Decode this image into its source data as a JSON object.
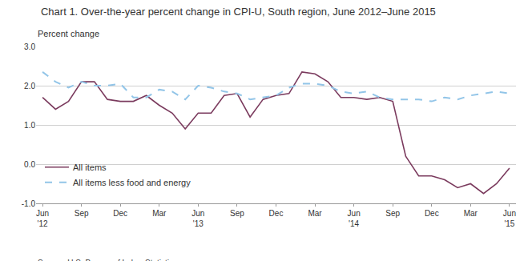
{
  "chart_data": {
    "type": "line",
    "title": "Chart 1. Over-the-year percent change in CPI-U, South region, June 2012–June 2015",
    "y_label": "Percent change",
    "annotations": [
      "Source: U.S. Bureau of Labor Statistics."
    ],
    "categories": [
      "Jun\n'12",
      null,
      null,
      "Sep",
      null,
      null,
      "Dec",
      null,
      null,
      "Mar",
      null,
      null,
      "Jun\n'13",
      null,
      null,
      "Sep",
      null,
      null,
      "Dec",
      null,
      null,
      "Mar",
      null,
      null,
      "Jun\n'14",
      null,
      null,
      "Sep",
      null,
      null,
      "Dec",
      null,
      null,
      "Mar",
      null,
      null,
      "Jun\n'15"
    ],
    "series": [
      {
        "name": "All items",
        "color": "#7B3B5E",
        "line_style": "solid",
        "values": [
          1.7,
          1.4,
          1.6,
          2.1,
          2.1,
          1.65,
          1.6,
          1.6,
          1.75,
          1.5,
          1.3,
          0.9,
          1.3,
          1.3,
          1.75,
          1.8,
          1.2,
          1.65,
          1.75,
          1.8,
          2.35,
          2.3,
          2.1,
          1.7,
          1.7,
          1.65,
          1.7,
          1.6,
          0.2,
          -0.3,
          -0.3,
          -0.4,
          -0.6,
          -0.5,
          -0.75,
          -0.5,
          -0.1
        ]
      },
      {
        "name": "All items less food and energy",
        "color": "#92C5E8",
        "line_style": "dashed",
        "values": [
          2.35,
          2.1,
          1.95,
          2.1,
          2.0,
          2.0,
          2.05,
          1.7,
          1.7,
          1.9,
          1.85,
          1.65,
          2.0,
          1.95,
          1.85,
          1.8,
          1.65,
          1.7,
          1.75,
          1.95,
          2.05,
          2.05,
          2.0,
          1.85,
          1.8,
          1.85,
          1.7,
          1.65,
          1.65,
          1.65,
          1.6,
          1.7,
          1.65,
          1.75,
          1.8,
          1.85,
          1.8
        ]
      }
    ],
    "ylim": [
      -1.0,
      3.0
    ],
    "yticks": [
      {
        "value": -1,
        "label": "-1.0"
      },
      {
        "value": 0,
        "label": "0.0"
      },
      {
        "value": 1,
        "label": "1.0"
      },
      {
        "value": 2,
        "label": "2.0"
      },
      {
        "value": 3,
        "label": "3.0"
      }
    ],
    "grid": true,
    "legend": "lower left"
  }
}
